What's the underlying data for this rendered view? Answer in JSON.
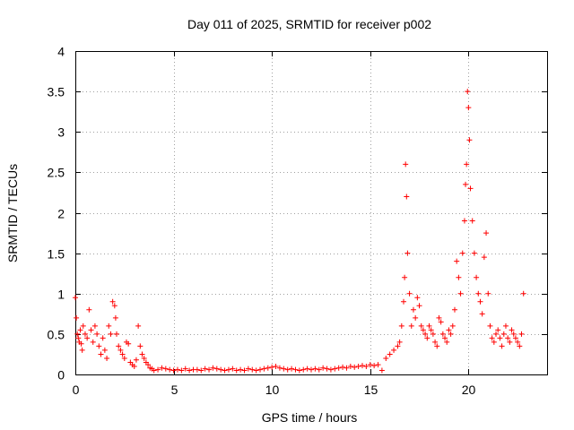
{
  "chart_data": {
    "type": "scatter",
    "title": "Day 011 of 2025, SRMTID for receiver p002",
    "xlabel": "GPS time / hours",
    "ylabel": "SRMTID / TECUs",
    "xlim": [
      0,
      24
    ],
    "ylim": [
      0,
      4
    ],
    "x_ticks": [
      0,
      5,
      10,
      15,
      20
    ],
    "x_tick_labels": [
      "0",
      "5",
      "10",
      "15",
      "20"
    ],
    "y_ticks": [
      0,
      0.5,
      1,
      1.5,
      2,
      2.5,
      3,
      3.5,
      4
    ],
    "y_tick_labels": [
      "0",
      "0.5",
      "1",
      "1.5",
      "2",
      "2.5",
      "3",
      "3.5",
      "4"
    ],
    "grid": true,
    "marker": "+",
    "series": [
      {
        "name": "p002",
        "color": "#ff0000",
        "x": [
          0.0,
          0.05,
          0.1,
          0.15,
          0.2,
          0.25,
          0.3,
          0.35,
          0.4,
          0.5,
          0.6,
          0.7,
          0.8,
          0.9,
          1.0,
          1.1,
          1.2,
          1.3,
          1.4,
          1.5,
          1.6,
          1.7,
          1.8,
          1.9,
          2.0,
          2.05,
          2.1,
          2.2,
          2.3,
          2.4,
          2.5,
          2.6,
          2.7,
          2.8,
          2.9,
          3.0,
          3.1,
          3.2,
          3.3,
          3.4,
          3.5,
          3.6,
          3.7,
          3.8,
          3.9,
          4.0,
          4.2,
          4.4,
          4.6,
          4.8,
          5.0,
          5.2,
          5.4,
          5.6,
          5.8,
          6.0,
          6.2,
          6.4,
          6.6,
          6.8,
          7.0,
          7.2,
          7.4,
          7.6,
          7.8,
          8.0,
          8.2,
          8.4,
          8.6,
          8.8,
          9.0,
          9.2,
          9.4,
          9.6,
          9.8,
          10.0,
          10.2,
          10.4,
          10.6,
          10.8,
          11.0,
          11.2,
          11.4,
          11.6,
          11.8,
          12.0,
          12.2,
          12.4,
          12.6,
          12.8,
          13.0,
          13.2,
          13.4,
          13.6,
          13.8,
          14.0,
          14.2,
          14.4,
          14.6,
          14.8,
          15.0,
          15.2,
          15.4,
          15.6,
          15.8,
          16.0,
          16.2,
          16.4,
          16.5,
          16.6,
          16.7,
          16.75,
          16.8,
          16.85,
          16.9,
          17.0,
          17.1,
          17.2,
          17.3,
          17.4,
          17.5,
          17.6,
          17.7,
          17.8,
          17.9,
          18.0,
          18.1,
          18.2,
          18.3,
          18.4,
          18.5,
          18.6,
          18.7,
          18.8,
          18.9,
          19.0,
          19.1,
          19.2,
          19.3,
          19.4,
          19.5,
          19.6,
          19.7,
          19.8,
          19.85,
          19.9,
          19.95,
          20.0,
          20.05,
          20.1,
          20.2,
          20.3,
          20.4,
          20.5,
          20.6,
          20.7,
          20.8,
          20.9,
          21.0,
          21.1,
          21.2,
          21.3,
          21.4,
          21.5,
          21.6,
          21.7,
          21.8,
          21.9,
          22.0,
          22.1,
          22.2,
          22.3,
          22.4,
          22.5,
          22.6,
          22.7,
          22.8
        ],
        "y": [
          0.95,
          0.7,
          0.5,
          0.45,
          0.4,
          0.55,
          0.38,
          0.3,
          0.6,
          0.5,
          0.45,
          0.8,
          0.55,
          0.4,
          0.6,
          0.5,
          0.35,
          0.25,
          0.45,
          0.3,
          0.2,
          0.6,
          0.5,
          0.9,
          0.85,
          0.7,
          0.5,
          0.35,
          0.3,
          0.25,
          0.2,
          0.4,
          0.38,
          0.15,
          0.12,
          0.1,
          0.18,
          0.6,
          0.35,
          0.25,
          0.2,
          0.15,
          0.12,
          0.08,
          0.07,
          0.05,
          0.06,
          0.08,
          0.07,
          0.06,
          0.05,
          0.06,
          0.05,
          0.07,
          0.05,
          0.06,
          0.06,
          0.05,
          0.07,
          0.06,
          0.08,
          0.07,
          0.06,
          0.05,
          0.06,
          0.07,
          0.05,
          0.06,
          0.05,
          0.07,
          0.06,
          0.05,
          0.06,
          0.07,
          0.08,
          0.09,
          0.1,
          0.08,
          0.07,
          0.06,
          0.07,
          0.06,
          0.05,
          0.06,
          0.07,
          0.06,
          0.07,
          0.06,
          0.08,
          0.07,
          0.06,
          0.07,
          0.08,
          0.09,
          0.08,
          0.1,
          0.09,
          0.1,
          0.11,
          0.1,
          0.12,
          0.11,
          0.12,
          0.05,
          0.2,
          0.25,
          0.3,
          0.35,
          0.4,
          0.6,
          0.9,
          1.2,
          2.6,
          2.2,
          1.5,
          1.0,
          0.6,
          0.8,
          0.7,
          0.95,
          0.85,
          0.6,
          0.55,
          0.5,
          0.45,
          0.6,
          0.55,
          0.5,
          0.4,
          0.35,
          0.7,
          0.65,
          0.5,
          0.45,
          0.4,
          0.55,
          0.5,
          0.6,
          0.8,
          1.4,
          1.2,
          1.0,
          1.5,
          1.9,
          2.35,
          2.6,
          3.5,
          3.3,
          2.9,
          2.3,
          1.9,
          1.5,
          1.2,
          1.0,
          0.9,
          0.75,
          1.45,
          1.75,
          1.0,
          0.6,
          0.45,
          0.4,
          0.5,
          0.55,
          0.45,
          0.35,
          0.5,
          0.6,
          0.45,
          0.4,
          0.55,
          0.5,
          0.45,
          0.4,
          0.35,
          0.5,
          1.0
        ]
      }
    ]
  }
}
